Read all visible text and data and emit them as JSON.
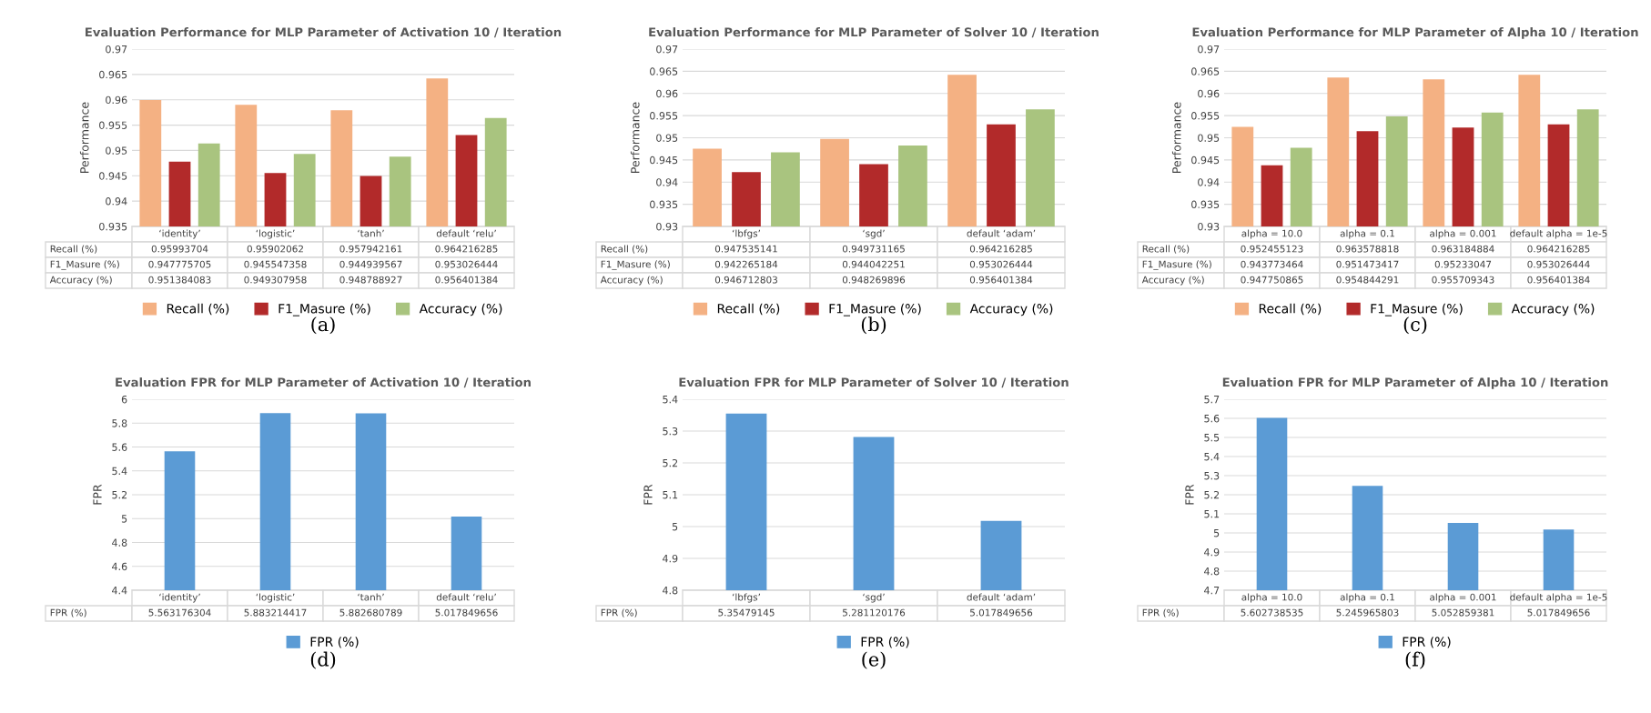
{
  "chart_data": [
    {
      "type": "bar",
      "title": "Evaluation Performance for MLP Parameter of Activation 10 / Iteration",
      "ylabel": "Performance",
      "categories": [
        "‘identity’",
        "‘logistic’",
        "‘tanh’",
        "default ‘relu’"
      ],
      "series": [
        {
          "name": "Recall (%)",
          "color": "#f4b183",
          "values": [
            0.95993704,
            0.95902062,
            0.957942161,
            0.964216285
          ]
        },
        {
          "name": "F1_Masure (%)",
          "color": "#b22a2a",
          "values": [
            0.947775705,
            0.945547358,
            0.944939567,
            0.953026444
          ]
        },
        {
          "name": "Accuracy (%)",
          "color": "#a9c47f",
          "values": [
            0.951384083,
            0.949307958,
            0.948788927,
            0.956401384
          ]
        }
      ],
      "ylim": [
        0.935,
        0.97
      ],
      "yticks": [
        0.935,
        0.94,
        0.945,
        0.95,
        0.955,
        0.96,
        0.965,
        0.97
      ],
      "grid": "y",
      "legend": "bottom",
      "data_labels": true,
      "annotations": [
        "(a)"
      ]
    },
    {
      "type": "bar",
      "title": "Evaluation Performance for MLP Parameter of Solver 10 / Iteration",
      "ylabel": "Performance",
      "categories": [
        "‘lbfgs’",
        "‘sgd’",
        "default ‘adam’"
      ],
      "series": [
        {
          "name": "Recall (%)",
          "color": "#f4b183",
          "values": [
            0.947535141,
            0.949731165,
            0.964216285
          ]
        },
        {
          "name": "F1_Masure (%)",
          "color": "#b22a2a",
          "values": [
            0.942265184,
            0.944042251,
            0.953026444
          ]
        },
        {
          "name": "Accuracy (%)",
          "color": "#a9c47f",
          "values": [
            0.946712803,
            0.948269896,
            0.956401384
          ]
        }
      ],
      "ylim": [
        0.93,
        0.97
      ],
      "yticks": [
        0.93,
        0.935,
        0.94,
        0.945,
        0.95,
        0.955,
        0.96,
        0.965,
        0.97
      ],
      "grid": "y",
      "legend": "bottom",
      "data_labels": true,
      "annotations": [
        "(b)"
      ]
    },
    {
      "type": "bar",
      "title": "Evaluation Performance for MLP Parameter of Alpha 10 / Iteration",
      "ylabel": "Performance",
      "categories": [
        "alpha = 10.0",
        "alpha = 0.1",
        "alpha = 0.001",
        "default alpha = 1e-5"
      ],
      "series": [
        {
          "name": "Recall (%)",
          "color": "#f4b183",
          "values": [
            0.952455123,
            0.963578818,
            0.963184884,
            0.964216285
          ]
        },
        {
          "name": "F1_Masure (%)",
          "color": "#b22a2a",
          "values": [
            0.943773464,
            0.951473417,
            0.95233047,
            0.953026444
          ]
        },
        {
          "name": "Accuracy (%)",
          "color": "#a9c47f",
          "values": [
            0.947750865,
            0.954844291,
            0.955709343,
            0.956401384
          ]
        }
      ],
      "ylim": [
        0.93,
        0.97
      ],
      "yticks": [
        0.93,
        0.935,
        0.94,
        0.945,
        0.95,
        0.955,
        0.96,
        0.965,
        0.97
      ],
      "grid": "y",
      "legend": "bottom",
      "data_labels": true,
      "annotations": [
        "(c)"
      ]
    },
    {
      "type": "bar",
      "title": "Evaluation FPR for MLP Parameter of Activation 10 / Iteration",
      "ylabel": "FPR",
      "categories": [
        "‘identity’",
        "‘logistic’",
        "‘tanh’",
        "default ‘relu’"
      ],
      "series": [
        {
          "name": "FPR (%)",
          "color": "#5b9bd5",
          "values": [
            5.563176304,
            5.883214417,
            5.882680789,
            5.017849656
          ]
        }
      ],
      "ylim": [
        4.4,
        6
      ],
      "yticks": [
        4.4,
        4.6,
        4.8,
        5,
        5.2,
        5.4,
        5.6,
        5.8,
        6
      ],
      "grid": "y",
      "legend": "bottom",
      "data_labels": true,
      "annotations": [
        "(d)"
      ]
    },
    {
      "type": "bar",
      "title": "Evaluation FPR for MLP Parameter of Solver 10 / Iteration",
      "ylabel": "FPR",
      "categories": [
        "‘lbfgs’",
        "‘sgd’",
        "default ‘adam’"
      ],
      "series": [
        {
          "name": "FPR (%)",
          "color": "#5b9bd5",
          "values": [
            5.35479145,
            5.281120176,
            5.017849656
          ]
        }
      ],
      "ylim": [
        4.8,
        5.4
      ],
      "yticks": [
        4.8,
        4.9,
        5,
        5.1,
        5.2,
        5.3,
        5.4
      ],
      "grid": "y",
      "legend": "bottom",
      "data_labels": true,
      "annotations": [
        "(e)"
      ]
    },
    {
      "type": "bar",
      "title": "Evaluation FPR for MLP Parameter of Alpha 10 / Iteration",
      "ylabel": "FPR",
      "categories": [
        "alpha = 10.0",
        "alpha = 0.1",
        "alpha = 0.001",
        "default alpha = 1e-5"
      ],
      "series": [
        {
          "name": "FPR (%)",
          "color": "#5b9bd5",
          "values": [
            5.602738535,
            5.245965803,
            5.052859381,
            5.017849656
          ]
        }
      ],
      "ylim": [
        4.7,
        5.7
      ],
      "yticks": [
        4.7,
        4.8,
        4.9,
        5,
        5.1,
        5.2,
        5.3,
        5.4,
        5.5,
        5.6,
        5.7
      ],
      "grid": "y",
      "legend": "bottom",
      "data_labels": true,
      "annotations": [
        "(f)"
      ]
    }
  ]
}
